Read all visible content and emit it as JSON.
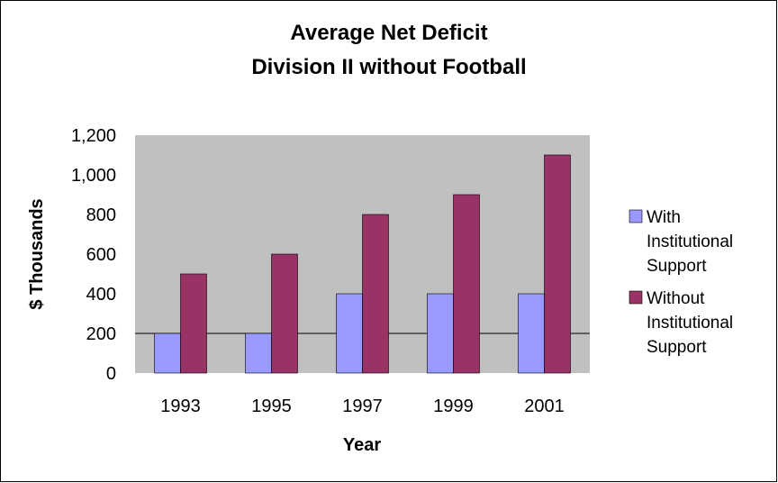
{
  "chart_data": {
    "type": "bar",
    "title": [
      "Average Net Deficit",
      "Division II without Football"
    ],
    "xlabel": "Year",
    "ylabel": "$ Thousands",
    "categories": [
      "1993",
      "1995",
      "1997",
      "1999",
      "2001"
    ],
    "series": [
      {
        "name": "With Institutional Support",
        "legend_lines": [
          "With",
          "Institutional",
          "Support"
        ],
        "color": "#9999ff",
        "values": [
          200,
          200,
          400,
          400,
          400
        ]
      },
      {
        "name": "Without Institutional Support",
        "legend_lines": [
          "Without",
          "Institutional",
          "Support"
        ],
        "color": "#993366",
        "values": [
          500,
          600,
          800,
          900,
          1100
        ]
      }
    ],
    "ylim": [
      0,
      1200
    ],
    "yticks": [
      "0",
      "200",
      "400",
      "600",
      "800",
      "1,000",
      "1,200"
    ],
    "ytick_values": [
      0,
      200,
      400,
      600,
      800,
      1000,
      1200
    ],
    "plot_background": "#c0c0c0",
    "grid_lines_at": [
      200
    ],
    "legend_position": "right"
  }
}
